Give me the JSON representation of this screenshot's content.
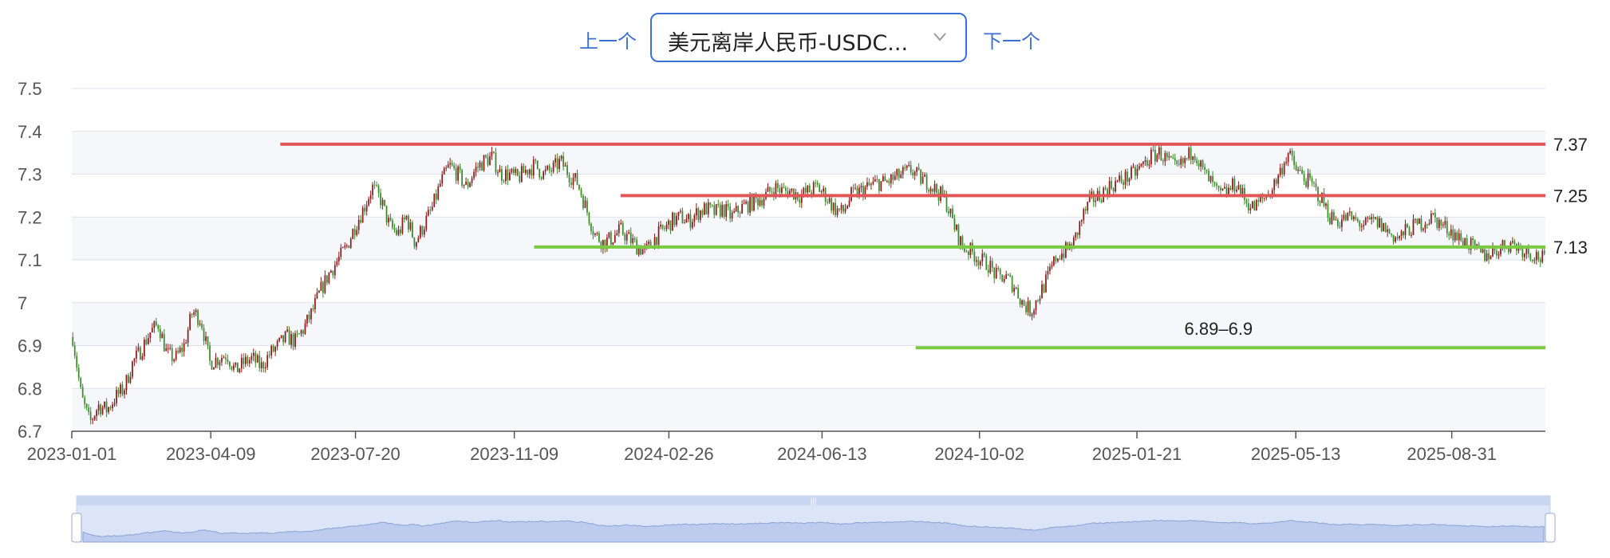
{
  "nav": {
    "prev_label": "上一个",
    "next_label": "下一个"
  },
  "selector": {
    "value": "美元离岸人民币-USDC...",
    "chevron": "chevron-down-icon"
  },
  "colors": {
    "up": "#8b1a1a",
    "down": "#3a8a2a",
    "resistance": "#e05555",
    "support": "#7ac943",
    "grid": "#dde2ec",
    "band": "#f6f7fb",
    "axis": "#555555",
    "zoom_fill": "#dce5f7",
    "zoom_line": "#8aa3d6"
  },
  "chart_data": {
    "type": "candlestick",
    "x_start": "2023-01-01",
    "x_end": "2025-11-05",
    "ylim": [
      6.7,
      7.5
    ],
    "y_ticks": [
      6.7,
      6.8,
      6.9,
      7,
      7.1,
      7.2,
      7.3,
      7.4,
      7.5
    ],
    "x_ticks": [
      "2023-01-01",
      "2023-04-09",
      "2023-07-20",
      "2023-11-09",
      "2024-02-26",
      "2024-06-13",
      "2024-10-02",
      "2025-01-21",
      "2025-05-13",
      "2025-08-31"
    ],
    "closes_weekly": [
      6.92,
      6.78,
      6.72,
      6.76,
      6.75,
      6.78,
      6.8,
      6.86,
      6.89,
      6.93,
      6.95,
      6.88,
      6.87,
      6.9,
      6.98,
      6.96,
      6.86,
      6.87,
      6.88,
      6.84,
      6.86,
      6.87,
      6.85,
      6.88,
      6.9,
      6.92,
      6.91,
      6.94,
      6.98,
      7.03,
      7.07,
      7.1,
      7.13,
      7.18,
      7.22,
      7.27,
      7.24,
      7.18,
      7.16,
      7.2,
      7.14,
      7.18,
      7.22,
      7.28,
      7.32,
      7.3,
      7.27,
      7.31,
      7.33,
      7.34,
      7.3,
      7.3,
      7.29,
      7.31,
      7.32,
      7.3,
      7.31,
      7.33,
      7.3,
      7.28,
      7.22,
      7.16,
      7.14,
      7.15,
      7.17,
      7.15,
      7.13,
      7.12,
      7.15,
      7.17,
      7.19,
      7.2,
      7.19,
      7.21,
      7.22,
      7.21,
      7.22,
      7.2,
      7.22,
      7.23,
      7.24,
      7.25,
      7.27,
      7.26,
      7.26,
      7.25,
      7.26,
      7.27,
      7.25,
      7.22,
      7.21,
      7.25,
      7.26,
      7.27,
      7.28,
      7.28,
      7.29,
      7.3,
      7.31,
      7.29,
      7.28,
      7.26,
      7.24,
      7.18,
      7.13,
      7.12,
      7.1,
      7.09,
      7.06,
      7.06,
      7.04,
      7.0,
      6.98,
      7.02,
      7.06,
      7.11,
      7.12,
      7.14,
      7.2,
      7.24,
      7.25,
      7.27,
      7.28,
      7.29,
      7.3,
      7.32,
      7.34,
      7.35,
      7.33,
      7.31,
      7.33,
      7.36,
      7.31,
      7.28,
      7.25,
      7.26,
      7.28,
      7.24,
      7.22,
      7.24,
      7.26,
      7.3,
      7.35,
      7.31,
      7.29,
      7.27,
      7.24,
      7.2,
      7.19,
      7.2,
      7.19,
      7.18,
      7.19,
      7.18,
      7.16,
      7.15,
      7.17,
      7.18,
      7.19,
      7.2,
      7.18,
      7.17,
      7.15,
      7.14,
      7.12,
      7.11,
      7.12,
      7.13,
      7.14,
      7.13,
      7.12,
      7.11,
      7.1
    ],
    "horizontal_lines": [
      {
        "label": "7.37",
        "value": 7.37,
        "x_from": "2023-05-28",
        "x_to": "2025-11-05",
        "kind": "resistance"
      },
      {
        "label": "7.25",
        "value": 7.25,
        "x_from": "2024-01-23",
        "x_to": "2025-11-05",
        "kind": "resistance"
      },
      {
        "label": "7.13",
        "value": 7.13,
        "x_from": "2023-11-23",
        "x_to": "2025-11-05",
        "kind": "support"
      },
      {
        "label": "6.89–6.9",
        "value": 6.895,
        "x_from": "2024-08-18",
        "x_to": "2025-11-05",
        "kind": "support"
      }
    ]
  }
}
